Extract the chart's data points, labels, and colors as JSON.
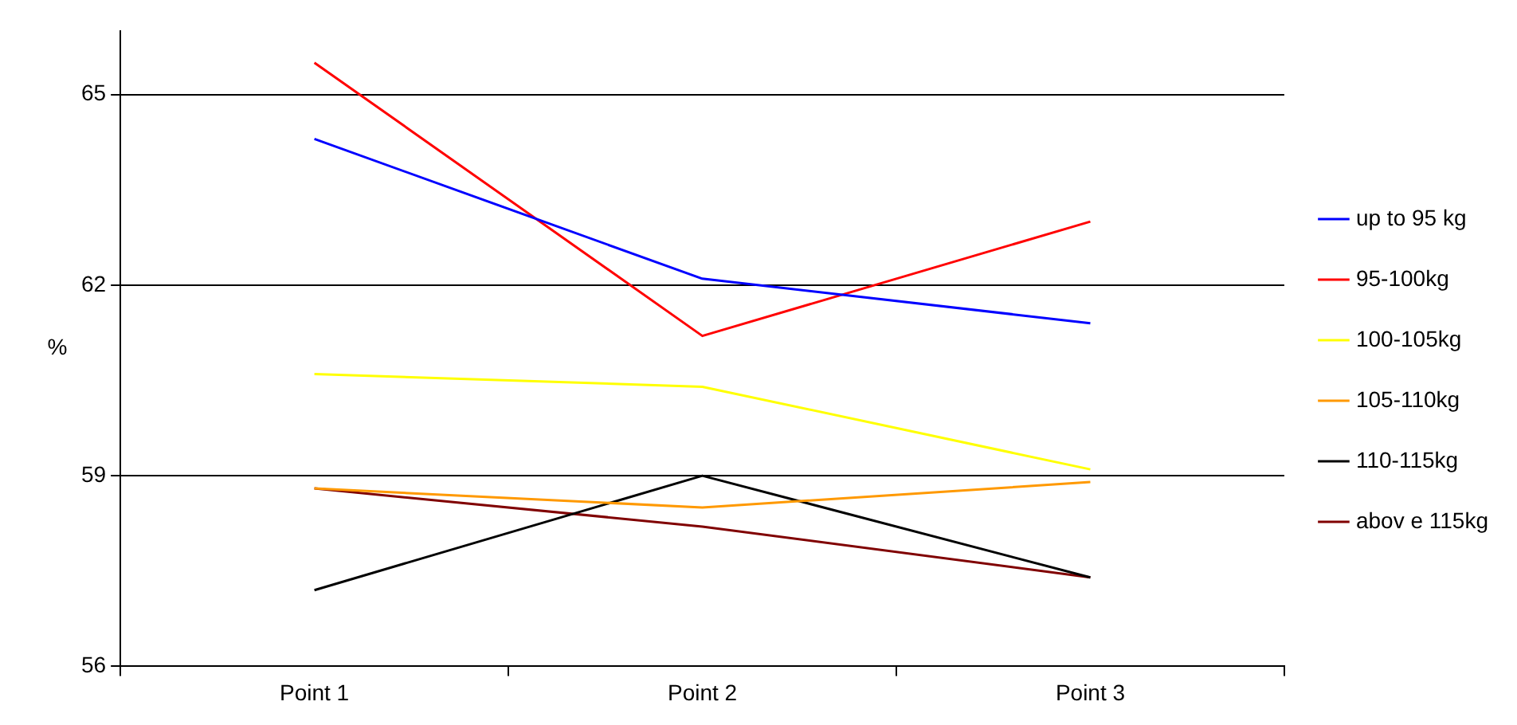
{
  "chart_data": {
    "type": "line",
    "ylabel": "%",
    "categories": [
      "Point 1",
      "Point 2",
      "Point 3"
    ],
    "series": [
      {
        "name": "up to 95 kg",
        "color": "#0000ff",
        "values": [
          64.3,
          62.1,
          61.4
        ]
      },
      {
        "name": "95-100kg",
        "color": "#ff0000",
        "values": [
          65.5,
          61.2,
          63.0
        ]
      },
      {
        "name": "100-105kg",
        "color": "#ffff00",
        "values": [
          60.6,
          60.4,
          59.1
        ]
      },
      {
        "name": "105-110kg",
        "color": "#ff9900",
        "values": [
          58.8,
          58.5,
          58.9
        ]
      },
      {
        "name": "110-115kg",
        "color": "#000000",
        "values": [
          57.2,
          59.0,
          57.4
        ]
      },
      {
        "name": "abov e 115kg",
        "color": "#800000",
        "values": [
          58.8,
          58.2,
          57.4
        ]
      }
    ],
    "ylim": [
      56,
      66
    ],
    "yticks": [
      56,
      59,
      62,
      65
    ],
    "grid": "y",
    "legend": "right",
    "marker": "none",
    "line_style": "solid"
  }
}
